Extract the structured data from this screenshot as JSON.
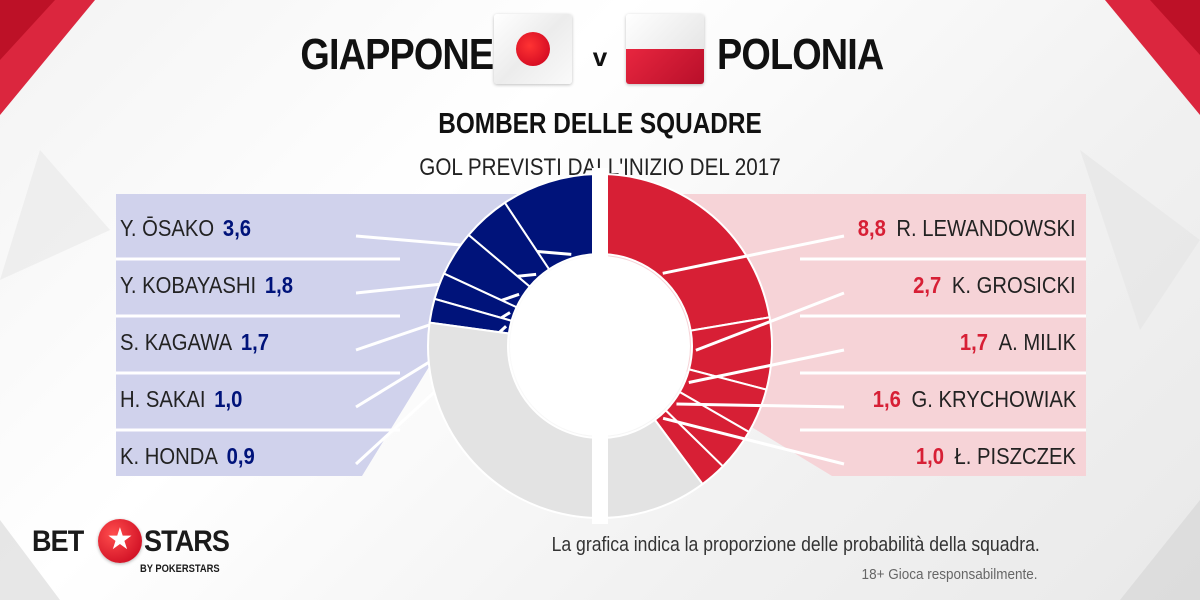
{
  "header": {
    "team_a": "GIAPPONE",
    "versus": "v",
    "team_b": "POLONIA",
    "title": "BOMBER DELLE SQUADRE",
    "subtitle": "GOL PREVISTI DALL'INIZIO  DEL 2017"
  },
  "flags": {
    "team_a": "japan-flag",
    "team_b": "poland-flag"
  },
  "colors": {
    "team_a_dark": "#00137a",
    "team_a_panel": "#d0d2ec",
    "team_b_red": "#d71f35",
    "team_b_panel": "#f6d3d7",
    "remainder": "#e3e3e3"
  },
  "chart_data": [
    {
      "type": "pie",
      "side": "left",
      "team": "GIAPPONE",
      "slices": [
        {
          "label": "Y. ŌSAKO",
          "display": "3,6",
          "value": 3.6
        },
        {
          "label": "Y. KOBAYASHI",
          "display": "1,8",
          "value": 1.8
        },
        {
          "label": "S. KAGAWA",
          "display": "1,7",
          "value": 1.7
        },
        {
          "label": "H. SAKAI",
          "display": "1,0",
          "value": 1.0
        },
        {
          "label": "K. HONDA",
          "display": "0,9",
          "value": 0.9
        }
      ]
    },
    {
      "type": "pie",
      "side": "right",
      "team": "POLONIA",
      "slices": [
        {
          "label": "R. LEWANDOWSKI",
          "display": "8,8",
          "value": 8.8
        },
        {
          "label": "K. GROSICKI",
          "display": "2,7",
          "value": 2.7
        },
        {
          "label": "A. MILIK",
          "display": "1,7",
          "value": 1.7
        },
        {
          "label": "G. KRYCHOWIAK",
          "display": "1,6",
          "value": 1.6
        },
        {
          "label": "Ł. PISZCZEK",
          "display": "1,0",
          "value": 1.0
        }
      ]
    }
  ],
  "footer": {
    "note": "La grafica indica la proporzione delle probabilità della squadra.",
    "disclaimer": "18+ Gioca responsabilmente.",
    "logo_left": "BET",
    "logo_right": "STARS",
    "logo_tagline": "BY POKERSTARS"
  }
}
